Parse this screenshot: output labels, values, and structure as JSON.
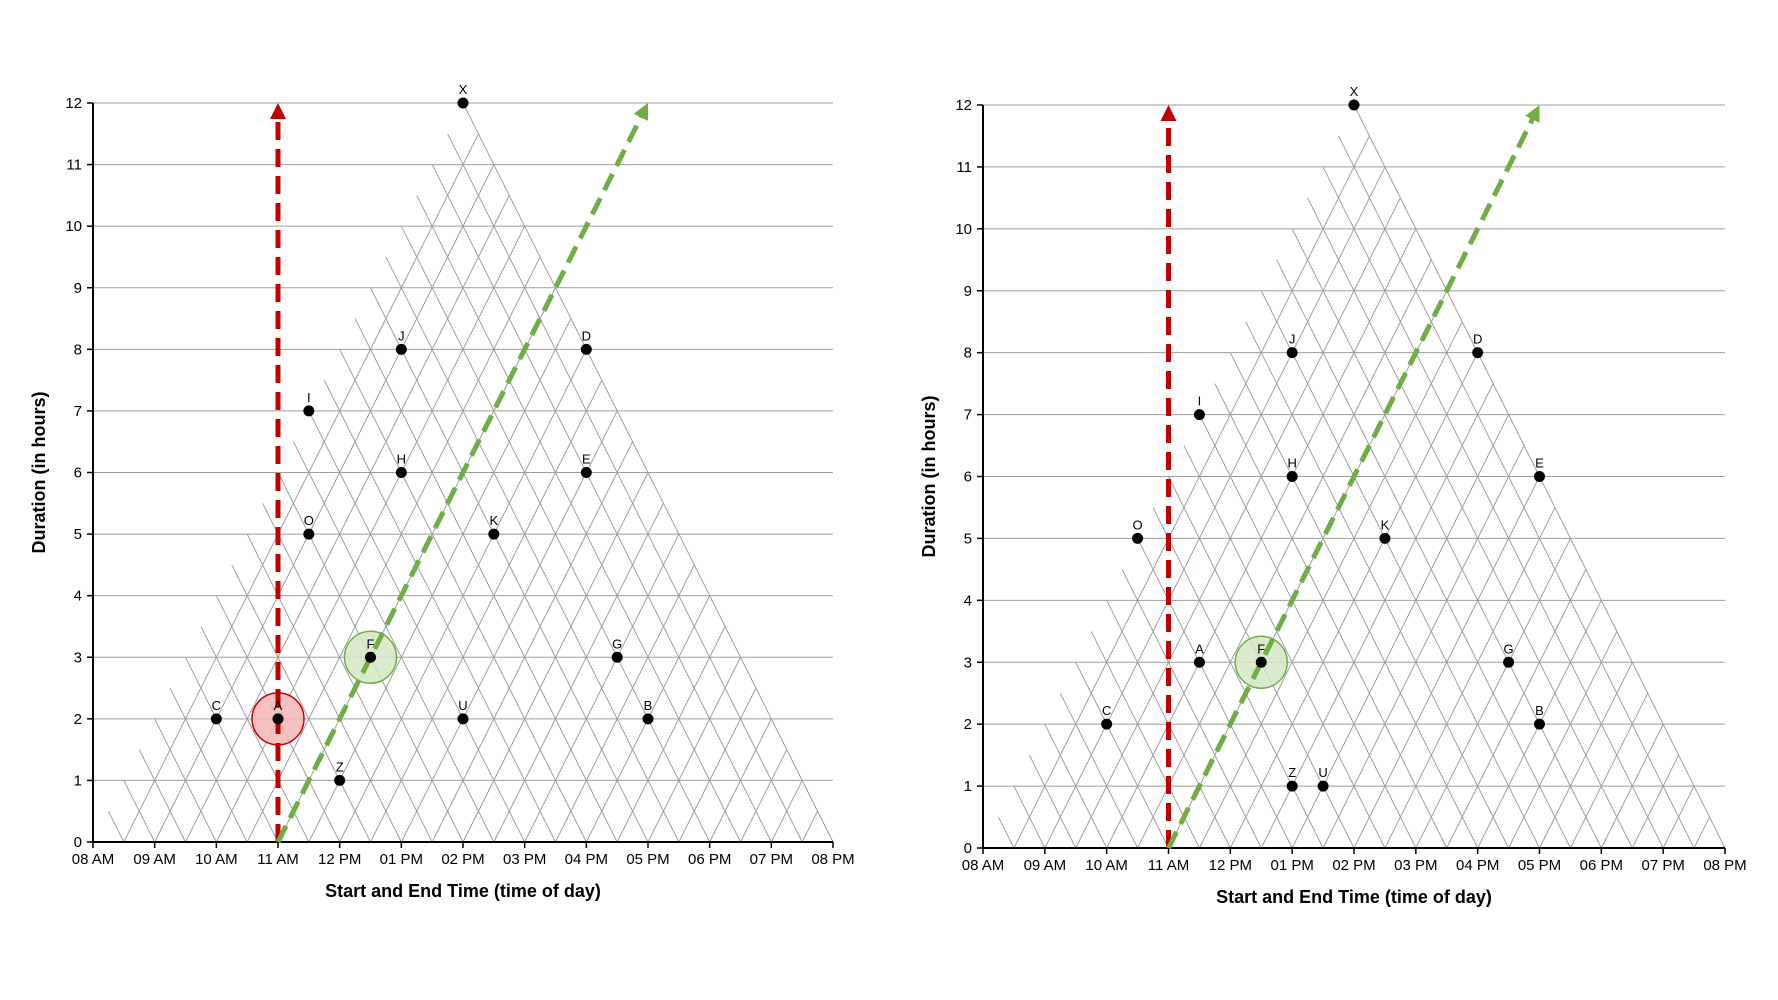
{
  "colors": {
    "grid": "#9e9e9e",
    "axis": "#000000",
    "point": "#000000",
    "start_arrow": "#c00000",
    "end_arrow": "#70ad47",
    "highlight_red": "#f4b6b6",
    "highlight_red_stroke": "#c00000",
    "highlight_green": "#d3e8c4",
    "highlight_green_stroke": "#70ad47"
  },
  "chart_data": [
    {
      "type": "scatter",
      "xlabel": "Start and End Time (time of day)",
      "ylabel": "Duration (in hours)",
      "x_ticks": [
        "08 AM",
        "09 AM",
        "10 AM",
        "11 AM",
        "12 PM",
        "01 PM",
        "02 PM",
        "03 PM",
        "04 PM",
        "05 PM",
        "06 PM",
        "07 PM",
        "08 PM"
      ],
      "y_ticks": [
        "0",
        "1",
        "2",
        "3",
        "4",
        "5",
        "6",
        "7",
        "8",
        "9",
        "10",
        "11",
        "12"
      ],
      "xlim": [
        8,
        20
      ],
      "ylim": [
        0,
        12
      ],
      "grid": "triangular",
      "points": [
        {
          "label": "X",
          "midpoint": 14,
          "duration": 12
        },
        {
          "label": "J",
          "midpoint": 13,
          "duration": 8
        },
        {
          "label": "D",
          "midpoint": 16,
          "duration": 8
        },
        {
          "label": "I",
          "midpoint": 11.5,
          "duration": 7
        },
        {
          "label": "H",
          "midpoint": 13,
          "duration": 6
        },
        {
          "label": "E",
          "midpoint": 16,
          "duration": 6
        },
        {
          "label": "O",
          "midpoint": 11.5,
          "duration": 5
        },
        {
          "label": "K",
          "midpoint": 14.5,
          "duration": 5
        },
        {
          "label": "F",
          "midpoint": 12.5,
          "duration": 3
        },
        {
          "label": "G",
          "midpoint": 16.5,
          "duration": 3
        },
        {
          "label": "C",
          "midpoint": 10,
          "duration": 2
        },
        {
          "label": "A",
          "midpoint": 11,
          "duration": 2
        },
        {
          "label": "U",
          "midpoint": 14,
          "duration": 2
        },
        {
          "label": "B",
          "midpoint": 17,
          "duration": 2
        },
        {
          "label": "Z",
          "midpoint": 12,
          "duration": 1
        }
      ],
      "highlights": [
        {
          "label": "A",
          "color": "red"
        },
        {
          "label": "F",
          "color": "green"
        }
      ],
      "reference_lines": [
        {
          "kind": "vertical",
          "color": "red",
          "time": 11
        },
        {
          "kind": "diagonal",
          "color": "green",
          "time": 11
        }
      ]
    },
    {
      "type": "scatter",
      "xlabel": "Start and End Time (time of day)",
      "ylabel": "Duration (in hours)",
      "x_ticks": [
        "08 AM",
        "09 AM",
        "10 AM",
        "11 AM",
        "12 PM",
        "01 PM",
        "02 PM",
        "03 PM",
        "04 PM",
        "05 PM",
        "06 PM",
        "07 PM",
        "08 PM"
      ],
      "y_ticks": [
        "0",
        "1",
        "2",
        "3",
        "4",
        "5",
        "6",
        "7",
        "8",
        "9",
        "10",
        "11",
        "12"
      ],
      "xlim": [
        8,
        20
      ],
      "ylim": [
        0,
        12
      ],
      "grid": "triangular",
      "points": [
        {
          "label": "X",
          "midpoint": 14,
          "duration": 12
        },
        {
          "label": "J",
          "midpoint": 13,
          "duration": 8
        },
        {
          "label": "D",
          "midpoint": 16,
          "duration": 8
        },
        {
          "label": "I",
          "midpoint": 11.5,
          "duration": 7
        },
        {
          "label": "H",
          "midpoint": 13,
          "duration": 6
        },
        {
          "label": "E",
          "midpoint": 17,
          "duration": 6
        },
        {
          "label": "O",
          "midpoint": 10.5,
          "duration": 5
        },
        {
          "label": "K",
          "midpoint": 14.5,
          "duration": 5
        },
        {
          "label": "A",
          "midpoint": 11.5,
          "duration": 3
        },
        {
          "label": "F",
          "midpoint": 12.5,
          "duration": 3
        },
        {
          "label": "G",
          "midpoint": 16.5,
          "duration": 3
        },
        {
          "label": "C",
          "midpoint": 10,
          "duration": 2
        },
        {
          "label": "B",
          "midpoint": 17,
          "duration": 2
        },
        {
          "label": "Z",
          "midpoint": 13,
          "duration": 1
        },
        {
          "label": "U",
          "midpoint": 13.5,
          "duration": 1
        }
      ],
      "highlights": [
        {
          "label": "F",
          "color": "green"
        }
      ],
      "reference_lines": [
        {
          "kind": "vertical",
          "color": "red",
          "time": 11
        },
        {
          "kind": "diagonal",
          "color": "green",
          "time": 11
        }
      ]
    }
  ]
}
